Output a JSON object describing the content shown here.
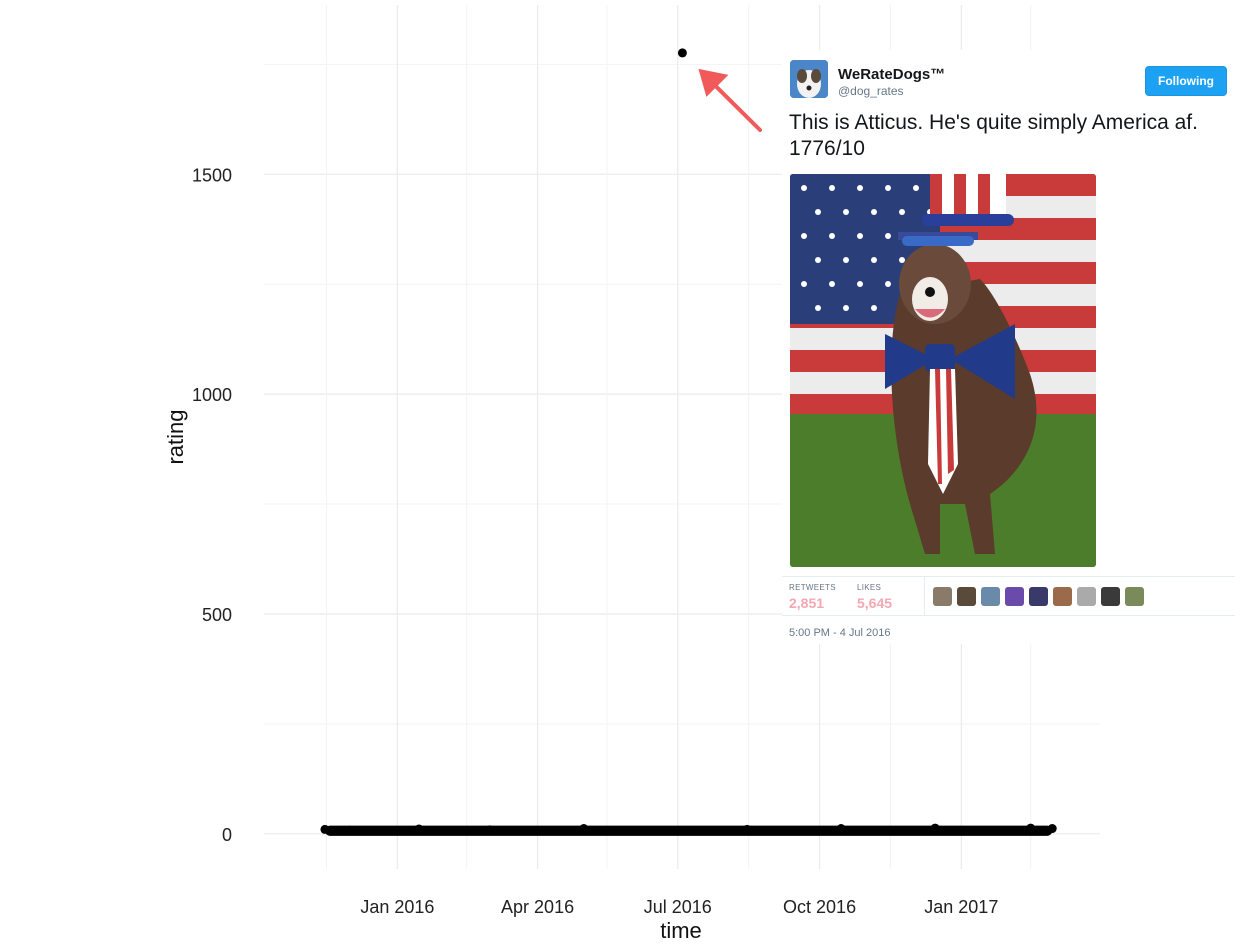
{
  "chart_data": {
    "type": "scatter",
    "title": "",
    "xlabel": "time",
    "ylabel": "rating",
    "x_ticks": [
      "Jan 2016",
      "Apr 2016",
      "Jul 2016",
      "Oct 2016",
      "Jan 2017"
    ],
    "y_ticks": [
      "0",
      "500",
      "1000",
      "1500"
    ],
    "ylim": [
      -80,
      1885
    ],
    "xlim": [
      "2015-10-11",
      "2017-04-01"
    ],
    "grid": true,
    "series": [
      {
        "points": [
          {
            "x": "2016-07-04",
            "y": 1776
          },
          {
            "x": "2015-11-15",
            "y": 10
          },
          {
            "x": "2015-12-01",
            "y": 8
          },
          {
            "x": "2016-01-15",
            "y": 11
          },
          {
            "x": "2016-03-01",
            "y": 9
          },
          {
            "x": "2016-05-01",
            "y": 12
          },
          {
            "x": "2016-08-15",
            "y": 10
          },
          {
            "x": "2016-10-15",
            "y": 12
          },
          {
            "x": "2016-12-15",
            "y": 13
          },
          {
            "x": "2017-02-15",
            "y": 13
          },
          {
            "x": "2017-03-01",
            "y": 12
          }
        ],
        "band": {
          "x_start": "2015-11-15",
          "x_end": "2017-03-01",
          "y_min": 0,
          "y_max": 14
        },
        "color": "#000000"
      }
    ],
    "annotation": {
      "type": "arrow",
      "color": "#f05a5a",
      "target": {
        "x": "2016-07-04",
        "y": 1776
      }
    }
  },
  "tweet": {
    "name": "WeRateDogs™",
    "handle": "@dog_rates",
    "follow_label": "Following",
    "text": "This is Atticus. He's quite simply America af. 1776/10",
    "retweets_label": "RETWEETS",
    "retweets_value": "2,851",
    "likes_label": "LIKES",
    "likes_value": "5,645",
    "timestamp": "5:00 PM - 4 Jul 2016",
    "accent": "#1da1f2",
    "liker_colors": [
      "#8a7a6a",
      "#5a4a3a",
      "#6a8aaa",
      "#6a4aaa",
      "#3a3a6a",
      "#9a6a4a",
      "#aaaaaa",
      "#3a3a3a",
      "#7a8a5a"
    ]
  }
}
